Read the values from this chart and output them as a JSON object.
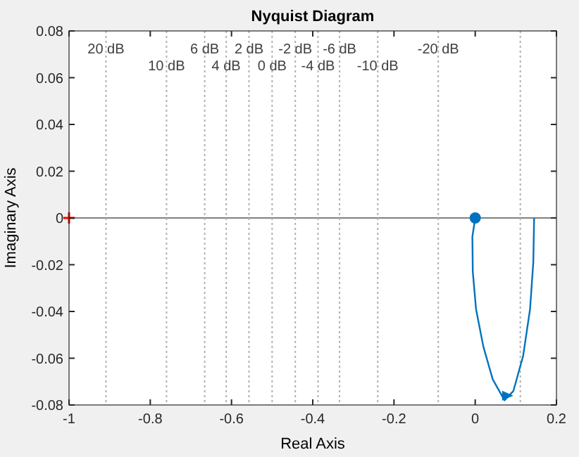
{
  "chart_data": {
    "type": "line",
    "title": "Nyquist Diagram",
    "xlabel": "Real Axis",
    "ylabel": "Imaginary Axis",
    "xlim": [
      -1,
      0.2
    ],
    "xticks": [
      -1,
      -0.8,
      -0.6,
      -0.4,
      -0.2,
      0,
      0.2
    ],
    "ylim": [
      -0.08,
      0.08
    ],
    "yticks": [
      -0.08,
      -0.06,
      -0.04,
      -0.02,
      0,
      0.02,
      0.04,
      0.06,
      0.08
    ],
    "series": [
      {
        "color": "#0072bd",
        "marker": "none",
        "x": [
          0,
          -0.007,
          -0.006,
          0.002,
          0.02,
          0.043,
          0.072,
          0.094,
          0.118,
          0.135,
          0.143,
          0.145
        ],
        "values": [
          0,
          -0.008,
          -0.023,
          -0.039,
          -0.055,
          -0.069,
          -0.078,
          -0.074,
          -0.059,
          -0.039,
          -0.019,
          0
        ]
      },
      {
        "type": "scatter",
        "color": "#0072bd",
        "marker": "circle",
        "x": [
          0
        ],
        "values": [
          0
        ]
      },
      {
        "type": "scatter",
        "color": "#0072bd",
        "marker": "triangle",
        "x": [
          0.08
        ],
        "values": [
          -0.076
        ]
      },
      {
        "type": "scatter",
        "color": "#ff0000",
        "marker": "cross",
        "x": [
          -1
        ],
        "values": [
          0
        ]
      }
    ],
    "ref_lines": [
      {
        "axis": "y",
        "value": 0,
        "color": "#808080",
        "line_style": "solid"
      },
      {
        "axis": "x",
        "value": -0.909,
        "label": "20 dB",
        "color": "#b0b0b0",
        "line_style": "dotted"
      },
      {
        "axis": "x",
        "value": -0.76,
        "label": "10 dB",
        "color": "#b0b0b0",
        "line_style": "dotted"
      },
      {
        "axis": "x",
        "value": -0.666,
        "label": "6 dB",
        "color": "#b0b0b0",
        "line_style": "dotted"
      },
      {
        "axis": "x",
        "value": -0.613,
        "label": "4 dB",
        "color": "#b0b0b0",
        "line_style": "dotted"
      },
      {
        "axis": "x",
        "value": -0.557,
        "label": "2 dB",
        "color": "#b0b0b0",
        "line_style": "dotted"
      },
      {
        "axis": "x",
        "value": -0.5,
        "label": "0 dB",
        "color": "#b0b0b0",
        "line_style": "dotted"
      },
      {
        "axis": "x",
        "value": -0.443,
        "label": "-2 dB",
        "color": "#b0b0b0",
        "line_style": "dotted"
      },
      {
        "axis": "x",
        "value": -0.387,
        "label": "-4 dB",
        "color": "#b0b0b0",
        "line_style": "dotted"
      },
      {
        "axis": "x",
        "value": -0.334,
        "label": "-6 dB",
        "color": "#b0b0b0",
        "line_style": "dotted"
      },
      {
        "axis": "x",
        "value": -0.24,
        "label": "-10 dB",
        "color": "#b0b0b0",
        "line_style": "dotted"
      },
      {
        "axis": "x",
        "value": -0.091,
        "label": "-20 dB",
        "color": "#b0b0b0",
        "line_style": "dotted"
      },
      {
        "axis": "x",
        "value": 0.111,
        "color": "#b0b0b0",
        "line_style": "dotted"
      }
    ]
  }
}
